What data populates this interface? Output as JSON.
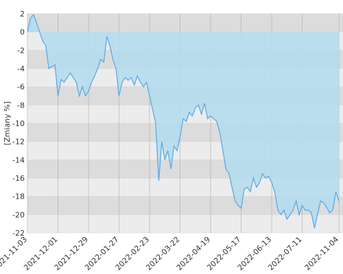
{
  "chart_data": {
    "type": "area",
    "y_label": "[Zmiany %]",
    "color": "#5aaae6",
    "fill": "#b3dcee",
    "grid": true,
    "ylim": [
      -22,
      2
    ],
    "yticks": [
      -22,
      -20,
      -18,
      -16,
      -14,
      -12,
      -10,
      -8,
      -6,
      -4,
      -2,
      0,
      2
    ],
    "categories": [
      "2021-11-03",
      null,
      null,
      null,
      null,
      null,
      null,
      null,
      null,
      null,
      "2021-12-01",
      null,
      null,
      null,
      null,
      null,
      null,
      null,
      null,
      null,
      "2021-12-29",
      null,
      null,
      null,
      null,
      null,
      null,
      null,
      null,
      null,
      "2022-01-27",
      null,
      null,
      null,
      null,
      null,
      null,
      null,
      null,
      null,
      "2022-02-23",
      null,
      null,
      null,
      null,
      null,
      null,
      null,
      null,
      null,
      "2022-03-22",
      null,
      null,
      null,
      null,
      null,
      null,
      null,
      null,
      null,
      "2022-04-19",
      null,
      null,
      null,
      null,
      null,
      null,
      null,
      null,
      null,
      "2022-05-17",
      null,
      null,
      null,
      null,
      null,
      null,
      null,
      null,
      null,
      "2022-06-13",
      null,
      null,
      null,
      null,
      null,
      null,
      null,
      null,
      null,
      "2022-07-11",
      null,
      null,
      null,
      null,
      null,
      null,
      null,
      null,
      null,
      null,
      null,
      "2022-11-04"
    ],
    "values": [
      0,
      1.5,
      1.9,
      1,
      0,
      -1,
      -1.5,
      -4,
      -3.8,
      -3.6,
      -7,
      -5.2,
      -5.5,
      -5,
      -4.5,
      -5,
      -5.5,
      -7,
      -6,
      -7,
      -6.5,
      -5.5,
      -4.8,
      -4,
      -3,
      -3.3,
      -0.5,
      -1.5,
      -3,
      -4,
      -7,
      -5.5,
      -5,
      -5.3,
      -5,
      -5.8,
      -4.8,
      -5.5,
      -6,
      -5.5,
      -7,
      -8.5,
      -10,
      -16.3,
      -12,
      -14,
      -13,
      -15,
      -12.5,
      -13,
      -11.5,
      -9.5,
      -9.8,
      -8.8,
      -9.2,
      -8.3,
      -8,
      -9,
      -7.8,
      -9.5,
      -9.2,
      -9.5,
      -9.8,
      -11,
      -13,
      -15,
      -15.5,
      -17,
      -18.5,
      -19,
      -19.3,
      -17.2,
      -17,
      -17.5,
      -16,
      -17,
      -16.5,
      -15.5,
      -16,
      -15.8,
      -16.5,
      -17.5,
      -19.5,
      -20,
      -19.5,
      -20.5,
      -20,
      -19.5,
      -18.5,
      -20,
      -19,
      -19.5,
      -19.5,
      -19.8,
      -21.5,
      -20,
      -18.5,
      -18.7,
      -19.2,
      -19.8,
      -19.5,
      -17.5,
      -18.5
    ]
  }
}
